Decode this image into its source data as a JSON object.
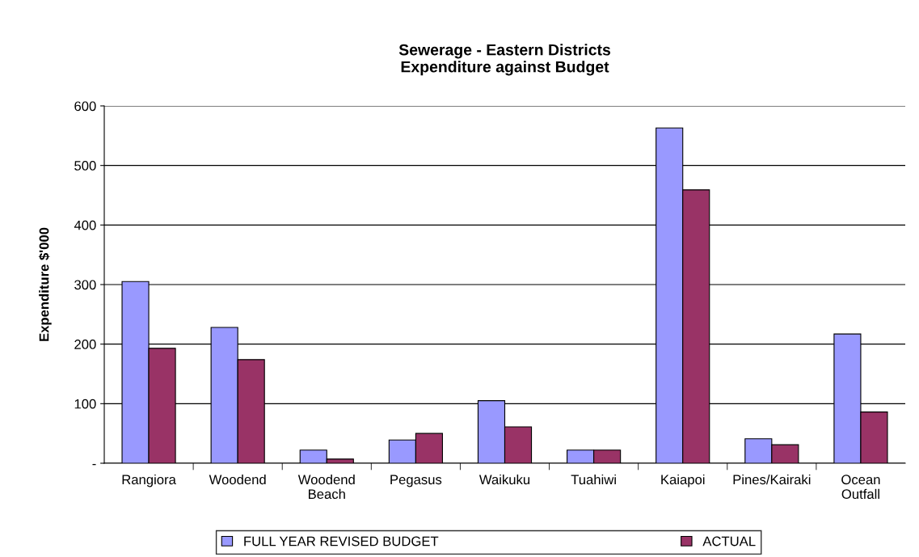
{
  "chart_data": {
    "type": "bar",
    "title": "Sewerage - Eastern Districts\nExpenditure against Budget",
    "ylabel": "Expenditure $'000",
    "categories": [
      "Rangiora",
      "Woodend",
      "Woodend\nBeach",
      "Pegasus",
      "Waikuku",
      "Tuahiwi",
      "Kaiapoi",
      "Pines/Kairaki",
      "Ocean\nOutfall"
    ],
    "series": [
      {
        "name": "FULL YEAR REVISED BUDGET",
        "color": "#9999ff",
        "values": [
          305,
          228,
          22,
          39,
          105,
          22,
          563,
          41,
          217
        ]
      },
      {
        "name": "ACTUAL",
        "color": "#993366",
        "values": [
          193,
          174,
          7,
          50,
          61,
          22,
          459,
          31,
          86
        ]
      }
    ],
    "ylim": [
      0,
      600
    ],
    "yticks": [
      {
        "value": 0,
        "label": "-"
      },
      100,
      200,
      300,
      400,
      500,
      600
    ],
    "grid": "y",
    "legend": "bottom"
  }
}
